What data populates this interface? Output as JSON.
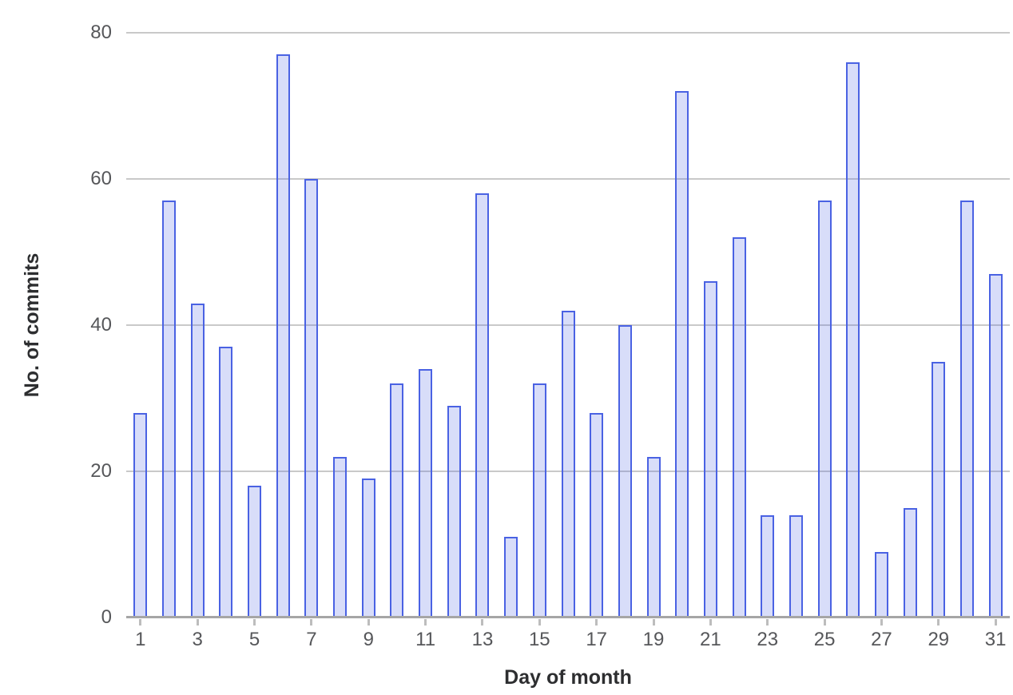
{
  "chart_data": {
    "type": "bar",
    "title": "",
    "xlabel": "Day of month",
    "ylabel": "No. of commits",
    "categories": [
      1,
      2,
      3,
      4,
      5,
      6,
      7,
      8,
      9,
      10,
      11,
      12,
      13,
      14,
      15,
      16,
      17,
      18,
      19,
      20,
      21,
      22,
      23,
      24,
      25,
      26,
      27,
      28,
      29,
      30,
      31
    ],
    "values": [
      28,
      57,
      43,
      37,
      18,
      77,
      60,
      22,
      19,
      32,
      34,
      29,
      58,
      11,
      32,
      42,
      28,
      40,
      22,
      72,
      46,
      52,
      14,
      14,
      57,
      76,
      9,
      15,
      35,
      57,
      47
    ],
    "ylim": [
      0,
      80
    ],
    "yticks": [
      0,
      20,
      40,
      60,
      80
    ],
    "xticks": [
      1,
      3,
      5,
      7,
      9,
      11,
      13,
      15,
      17,
      19,
      21,
      23,
      25,
      27,
      29,
      31
    ],
    "grid": true,
    "legend": "none",
    "colors": {
      "bar_fill": "#d8ddf9",
      "bar_border": "#4a62e3",
      "gridline": "#c9c9c9",
      "axis_line": "#a6a6a6",
      "tick_label": "#56575a",
      "axis_title": "#2d2e30",
      "background": "#ffffff"
    }
  }
}
